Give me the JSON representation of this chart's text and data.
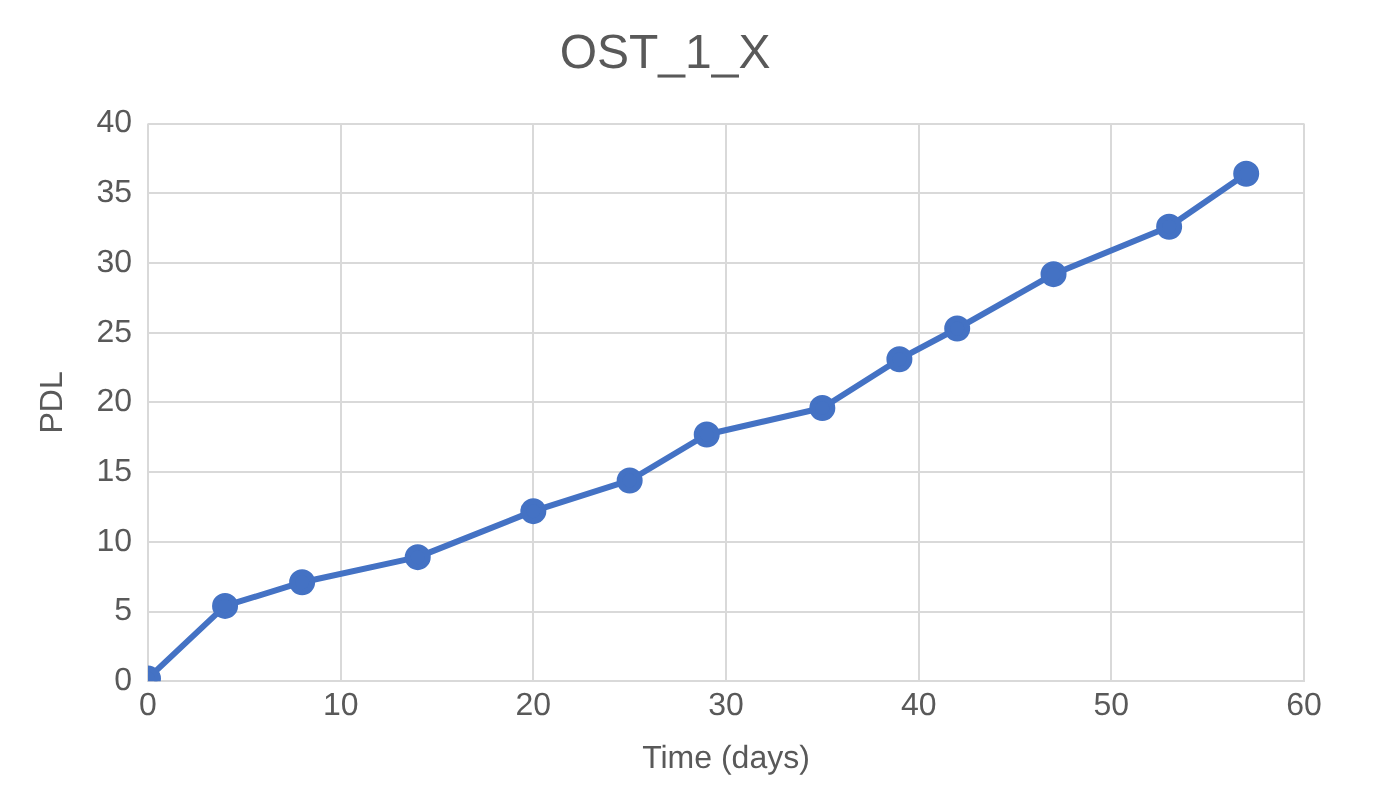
{
  "chart_data": {
    "type": "line",
    "title": "OST_1_X",
    "xlabel": "Time (days)",
    "ylabel": "PDL",
    "x": [
      0,
      4,
      8,
      14,
      20,
      25,
      29,
      35,
      39,
      42,
      47,
      53,
      57
    ],
    "series": [
      {
        "color": "#4472c4",
        "values": [
          0.2,
          5.4,
          7.1,
          8.9,
          12.2,
          14.4,
          17.7,
          19.6,
          23.1,
          25.3,
          29.2,
          32.6,
          36.4
        ]
      }
    ],
    "xlim": [
      0,
      60
    ],
    "xticks": [
      0,
      10,
      20,
      30,
      40,
      50,
      60
    ],
    "ylim": [
      0,
      40
    ],
    "yticks": [
      0,
      5,
      10,
      15,
      20,
      25,
      30,
      35,
      40
    ],
    "grid": true,
    "legend": false,
    "marker": "circle",
    "line_style": "solid"
  }
}
